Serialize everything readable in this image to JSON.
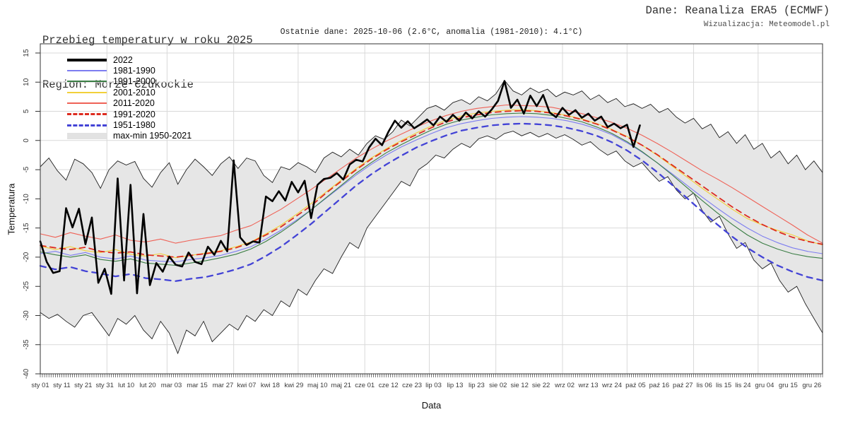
{
  "header": {
    "title": "Przebieg temperatury w roku 2025",
    "region": "Region: Morze Czukockie",
    "source": "Dane: Reanaliza ERA5 (ECMWF)",
    "visualization": "Wizualizacja: Meteomodel.pl",
    "subtitle": "Ostatnie dane: 2025-10-06 (2.6°C, anomalia (1981-2010): 4.1°C)"
  },
  "chart_data": {
    "type": "line",
    "title": "Przebieg temperatury w roku 2025",
    "xlabel": "Data",
    "ylabel": "Temperatura",
    "ylim": [
      -40,
      15
    ],
    "x_range_days": [
      1,
      365
    ],
    "grid": "on",
    "legend_position": "top-left",
    "y_ticks": [
      15,
      10,
      5,
      0,
      -5,
      -10,
      -15,
      -20,
      -25,
      -30,
      -35,
      -40
    ],
    "month_grid_days": [
      32,
      60,
      91,
      121,
      152,
      182,
      213,
      244,
      274,
      305,
      335
    ],
    "x_tick_labels": [
      {
        "label": "sty 01",
        "day": 1
      },
      {
        "label": "sty 11",
        "day": 11
      },
      {
        "label": "sty 21",
        "day": 21
      },
      {
        "label": "sty 31",
        "day": 31
      },
      {
        "label": "lut 10",
        "day": 41
      },
      {
        "label": "lut 20",
        "day": 51
      },
      {
        "label": "mar 03",
        "day": 62
      },
      {
        "label": "mar 15",
        "day": 74
      },
      {
        "label": "mar 27",
        "day": 86
      },
      {
        "label": "kwi 07",
        "day": 97
      },
      {
        "label": "kwi 18",
        "day": 108
      },
      {
        "label": "kwi 29",
        "day": 119
      },
      {
        "label": "maj 10",
        "day": 130
      },
      {
        "label": "maj 21",
        "day": 141
      },
      {
        "label": "cze 01",
        "day": 152
      },
      {
        "label": "cze 12",
        "day": 163
      },
      {
        "label": "cze 23",
        "day": 174
      },
      {
        "label": "lip 03",
        "day": 184
      },
      {
        "label": "lip 13",
        "day": 194
      },
      {
        "label": "lip 23",
        "day": 204
      },
      {
        "label": "sie 02",
        "day": 214
      },
      {
        "label": "sie 12",
        "day": 224
      },
      {
        "label": "sie 22",
        "day": 234
      },
      {
        "label": "wrz 02",
        "day": 245
      },
      {
        "label": "wrz 13",
        "day": 256
      },
      {
        "label": "wrz 24",
        "day": 267
      },
      {
        "label": "paź 05",
        "day": 278
      },
      {
        "label": "paź 16",
        "day": 289
      },
      {
        "label": "paź 27",
        "day": 300
      },
      {
        "label": "lis 06",
        "day": 310
      },
      {
        "label": "lis 15",
        "day": 319
      },
      {
        "label": "lis 24",
        "day": 328
      },
      {
        "label": "gru 04",
        "day": 338
      },
      {
        "label": "gru 15",
        "day": 349
      },
      {
        "label": "gru 26",
        "day": 360
      }
    ],
    "legend": [
      {
        "label": "2022",
        "color": "#000000",
        "style": "solid-thick"
      },
      {
        "label": "1981-1990",
        "color": "#7d7df0",
        "style": "solid"
      },
      {
        "label": "1991-2000",
        "color": "#3a7d44",
        "style": "solid"
      },
      {
        "label": "2001-2010",
        "color": "#f2d03a",
        "style": "solid"
      },
      {
        "label": "2011-2020",
        "color": "#ef6257",
        "style": "solid"
      },
      {
        "label": "1991-2020",
        "color": "#dd2c20",
        "style": "dashed"
      },
      {
        "label": "1951-1980",
        "color": "#4343d6",
        "style": "dashed"
      },
      {
        "label": "max-min 1950-2021",
        "color": "#e2e2e2",
        "style": "band"
      }
    ],
    "band": {
      "label": "max-min 1950-2021",
      "fill": "#e6e6e6",
      "edge_color": "#1f1f1f",
      "start_day": 1,
      "step_days": 4,
      "max": [
        -4.5,
        -3.0,
        -5.2,
        -6.8,
        -3.2,
        -4.0,
        -5.5,
        -8.2,
        -5.0,
        -3.5,
        -4.2,
        -3.6,
        -6.5,
        -8.0,
        -5.5,
        -3.8,
        -7.5,
        -5.0,
        -3.2,
        -4.5,
        -6.0,
        -4.0,
        -2.8,
        -4.8,
        -3.0,
        -3.5,
        -6.0,
        -7.2,
        -4.5,
        -5.0,
        -3.8,
        -4.5,
        -5.5,
        -3.0,
        -2.0,
        -2.8,
        -1.5,
        -2.5,
        -0.5,
        0.8,
        0.2,
        1.5,
        3.5,
        2.5,
        4.0,
        5.5,
        6.0,
        5.2,
        6.5,
        7.0,
        6.2,
        7.5,
        6.8,
        8.0,
        10.3,
        8.5,
        7.8,
        9.0,
        8.2,
        8.8,
        7.5,
        8.3,
        7.8,
        8.5,
        7.0,
        7.8,
        6.5,
        7.2,
        5.8,
        6.3,
        5.5,
        6.2,
        4.8,
        5.5,
        4.0,
        3.0,
        3.8,
        2.0,
        2.8,
        0.5,
        1.5,
        -0.5,
        1.0,
        -1.5,
        -0.5,
        -3.0,
        -1.8,
        -4.0,
        -2.5,
        -5.0,
        -3.5,
        -5.5
      ],
      "min": [
        -29.5,
        -30.5,
        -29.8,
        -31.0,
        -32.0,
        -30.0,
        -29.5,
        -31.5,
        -33.5,
        -30.5,
        -31.5,
        -30.0,
        -32.5,
        -34.0,
        -31.0,
        -33.0,
        -36.5,
        -32.5,
        -33.5,
        -31.0,
        -34.5,
        -33.0,
        -31.5,
        -32.5,
        -30.0,
        -31.0,
        -29.0,
        -30.0,
        -27.5,
        -28.5,
        -25.5,
        -26.5,
        -24.0,
        -22.0,
        -22.8,
        -20.0,
        -17.5,
        -18.5,
        -15.0,
        -13.0,
        -11.0,
        -9.0,
        -7.0,
        -7.8,
        -5.0,
        -4.0,
        -2.5,
        -3.0,
        -1.5,
        -0.5,
        -1.2,
        0.3,
        0.8,
        0.2,
        1.2,
        1.6,
        0.8,
        1.4,
        0.6,
        1.2,
        0.4,
        1.0,
        0.2,
        -0.8,
        -0.2,
        -1.5,
        -2.5,
        -1.8,
        -3.5,
        -4.5,
        -3.8,
        -5.5,
        -7.0,
        -6.2,
        -8.5,
        -10.0,
        -9.0,
        -12.0,
        -14.0,
        -13.0,
        -16.0,
        -18.5,
        -17.5,
        -20.5,
        -22.0,
        -21.0,
        -24.0,
        -26.0,
        -25.0,
        -28.0,
        -30.5,
        -33.0
      ]
    },
    "series": [
      {
        "name": "1981-1990",
        "color": "#7d7df0",
        "dash": "none",
        "width": 1.1,
        "start_day": 1,
        "step_days": 7,
        "values": [
          -19.4,
          -19.0,
          -19.7,
          -19.2,
          -20.0,
          -20.3,
          -19.8,
          -20.5,
          -20.7,
          -20.8,
          -20.4,
          -20.1,
          -19.7,
          -19.0,
          -18.2,
          -16.9,
          -15.4,
          -13.7,
          -11.9,
          -9.9,
          -7.9,
          -5.9,
          -4.1,
          -2.5,
          -1.1,
          0.1,
          1.2,
          2.2,
          2.9,
          3.4,
          3.8,
          4.0,
          4.1,
          4.0,
          3.8,
          3.4,
          2.8,
          2.0,
          1.0,
          -0.4,
          -2.0,
          -3.8,
          -5.7,
          -7.7,
          -9.7,
          -11.6,
          -13.4,
          -15.0,
          -16.4,
          -17.5,
          -18.4,
          -19.0,
          -19.4
        ]
      },
      {
        "name": "1991-2000",
        "color": "#3a7d44",
        "dash": "none",
        "width": 1.1,
        "start_day": 1,
        "step_days": 7,
        "values": [
          -19.1,
          -19.6,
          -20.0,
          -19.6,
          -20.4,
          -20.7,
          -20.3,
          -21.0,
          -21.2,
          -21.4,
          -21.0,
          -20.6,
          -20.1,
          -19.5,
          -18.6,
          -17.3,
          -15.7,
          -13.9,
          -11.9,
          -9.8,
          -7.7,
          -5.6,
          -3.8,
          -2.1,
          -0.7,
          0.6,
          1.8,
          2.8,
          3.5,
          4.0,
          4.4,
          4.6,
          4.7,
          4.6,
          4.3,
          3.8,
          3.2,
          2.3,
          1.2,
          -0.2,
          -1.9,
          -3.8,
          -5.9,
          -8.1,
          -10.3,
          -12.4,
          -14.4,
          -16.2,
          -17.6,
          -18.6,
          -19.4,
          -19.9,
          -20.2
        ]
      },
      {
        "name": "2001-2010",
        "color": "#f2d03a",
        "dash": "none",
        "width": 1.1,
        "start_day": 1,
        "step_days": 7,
        "values": [
          -18.1,
          -18.7,
          -18.2,
          -18.9,
          -19.2,
          -18.7,
          -19.5,
          -19.8,
          -19.4,
          -20.1,
          -19.7,
          -19.3,
          -18.9,
          -18.2,
          -17.4,
          -16.0,
          -14.5,
          -12.7,
          -10.8,
          -8.8,
          -6.8,
          -4.8,
          -3.0,
          -1.4,
          0.0,
          1.3,
          2.5,
          3.5,
          4.2,
          4.7,
          5.0,
          5.2,
          5.3,
          5.1,
          4.8,
          4.3,
          3.7,
          2.9,
          1.9,
          0.7,
          -0.8,
          -2.5,
          -4.4,
          -6.3,
          -8.2,
          -10.0,
          -11.8,
          -13.4,
          -14.5,
          -15.4,
          -16.2,
          -17.2,
          -17.9
        ]
      },
      {
        "name": "2011-2020",
        "color": "#ef6257",
        "dash": "none",
        "width": 1.1,
        "start_day": 1,
        "step_days": 7,
        "values": [
          -16.0,
          -16.6,
          -15.8,
          -16.4,
          -16.9,
          -16.2,
          -17.1,
          -17.4,
          -16.9,
          -17.6,
          -17.1,
          -16.7,
          -16.3,
          -15.4,
          -14.6,
          -13.2,
          -11.8,
          -10.1,
          -8.4,
          -6.6,
          -4.8,
          -3.0,
          -1.5,
          -0.1,
          1.1,
          2.3,
          3.4,
          4.3,
          5.0,
          5.5,
          5.8,
          6.1,
          6.0,
          5.9,
          5.7,
          5.2,
          4.6,
          3.9,
          3.1,
          2.1,
          0.9,
          -0.5,
          -2.0,
          -3.6,
          -5.2,
          -6.6,
          -8.1,
          -9.7,
          -11.3,
          -12.9,
          -14.5,
          -16.2,
          -17.6
        ]
      },
      {
        "name": "1991-2020",
        "color": "#dd2c20",
        "dash": "8,6",
        "width": 1.8,
        "start_day": 1,
        "step_days": 7,
        "values": [
          -18.0,
          -18.4,
          -18.7,
          -18.3,
          -19.0,
          -19.3,
          -19.1,
          -19.6,
          -19.8,
          -20.0,
          -19.7,
          -19.4,
          -19.0,
          -18.4,
          -17.5,
          -16.2,
          -14.8,
          -13.0,
          -11.2,
          -9.0,
          -7.0,
          -5.0,
          -3.2,
          -1.6,
          -0.2,
          1.0,
          2.2,
          3.2,
          3.9,
          4.4,
          4.8,
          5.0,
          5.1,
          5.0,
          4.7,
          4.2,
          3.6,
          2.8,
          1.8,
          0.6,
          -0.8,
          -2.4,
          -4.2,
          -6.0,
          -7.8,
          -9.6,
          -11.4,
          -13.0,
          -14.4,
          -15.6,
          -16.6,
          -17.3,
          -17.8
        ]
      },
      {
        "name": "1951-1980",
        "color": "#4343d6",
        "dash": "8,7",
        "width": 2.3,
        "start_day": 1,
        "step_days": 7,
        "values": [
          -21.5,
          -22.1,
          -21.7,
          -22.4,
          -22.8,
          -23.3,
          -22.9,
          -23.6,
          -23.8,
          -24.1,
          -23.7,
          -23.4,
          -22.8,
          -22.1,
          -21.2,
          -19.8,
          -18.2,
          -16.3,
          -14.3,
          -12.1,
          -9.9,
          -7.7,
          -5.8,
          -4.1,
          -2.6,
          -1.2,
          -0.1,
          0.9,
          1.7,
          2.2,
          2.6,
          2.8,
          2.9,
          2.8,
          2.6,
          2.2,
          1.6,
          0.8,
          -0.3,
          -1.7,
          -3.4,
          -5.4,
          -7.6,
          -9.9,
          -12.2,
          -14.4,
          -16.5,
          -18.4,
          -20.0,
          -21.4,
          -22.5,
          -23.4,
          -24.0
        ]
      },
      {
        "name": "2022",
        "color": "#000000",
        "dash": "none",
        "width": 2.6,
        "start_day": 1,
        "step_days": 3,
        "values": [
          -17.3,
          -20.8,
          -22.7,
          -22.4,
          -11.6,
          -14.9,
          -11.7,
          -17.8,
          -13.2,
          -24.4,
          -22.0,
          -26.3,
          -6.5,
          -24.0,
          -7.6,
          -26.2,
          -12.6,
          -24.8,
          -21.0,
          -22.5,
          -19.9,
          -21.3,
          -21.6,
          -19.2,
          -20.8,
          -21.2,
          -18.2,
          -19.6,
          -17.2,
          -19.0,
          -3.4,
          -16.6,
          -17.9,
          -17.3,
          -17.5,
          -9.6,
          -10.4,
          -8.7,
          -10.3,
          -7.1,
          -8.9,
          -6.9,
          -13.3,
          -7.6,
          -6.6,
          -6.4,
          -5.6,
          -6.7,
          -4.1,
          -3.3,
          -3.6,
          -1.2,
          0.3,
          -0.8,
          1.5,
          3.4,
          2.2,
          3.3,
          2.1,
          2.8,
          3.6,
          2.6,
          4.1,
          3.2,
          4.4,
          3.4,
          4.8,
          3.8,
          5.0,
          4.1,
          5.3,
          6.8,
          10.2,
          5.6,
          7.0,
          4.6,
          7.7,
          5.9,
          7.8,
          4.8,
          4.0,
          5.6,
          4.4,
          5.2,
          3.9,
          4.6,
          3.4,
          4.1,
          2.3,
          2.9,
          2.1,
          2.7,
          -1.1,
          2.6
        ]
      }
    ]
  }
}
